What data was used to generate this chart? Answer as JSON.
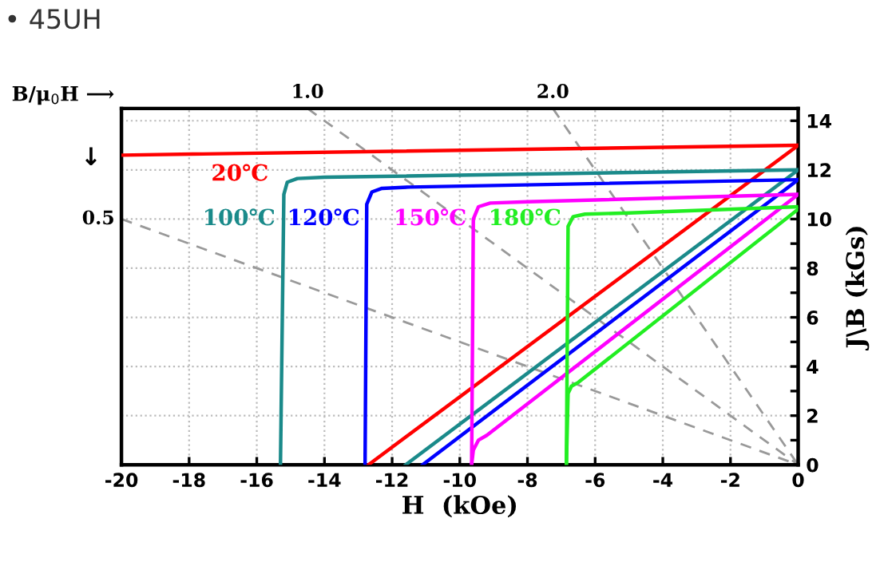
{
  "chart_data": {
    "type": "line",
    "title": "• 45UH",
    "xlabel": "H  (kOe)",
    "ylabel": "J\\B (kGs)",
    "xlim": [
      -20,
      0
    ],
    "xticks": [
      -20,
      -18,
      -16,
      -14,
      -12,
      -10,
      -8,
      -6,
      -4,
      -2,
      0
    ],
    "ylim": [
      0,
      14.5
    ],
    "yticks": [
      0,
      {
        "value": 1,
        "label": null
      },
      2,
      {
        "value": 3,
        "label": null
      },
      4,
      {
        "value": 5,
        "label": null
      },
      6,
      {
        "value": 7,
        "label": null
      },
      8,
      {
        "value": 9,
        "label": null
      },
      10,
      {
        "value": 11,
        "label": null
      },
      12,
      {
        "value": 13,
        "label": null
      },
      14
    ],
    "grid": true,
    "line_style": "solid",
    "series": [
      {
        "name": "20℃",
        "color": "#ff0000",
        "x": [
          -20,
          0
        ],
        "values": [
          12.6,
          13.0
        ]
      },
      {
        "color": "#ff0000",
        "x": [
          -12.7,
          0
        ],
        "values": [
          0,
          13.0
        ]
      },
      {
        "name": "100℃",
        "color": "#1a8a8a",
        "x": [
          -15.3,
          -15.2,
          -15.1,
          -14.8,
          -14.0,
          0
        ],
        "values": [
          0,
          11.0,
          11.5,
          11.65,
          11.7,
          12.0
        ]
      },
      {
        "color": "#1a8a8a",
        "x": [
          -11.6,
          0
        ],
        "values": [
          0,
          12.0
        ]
      },
      {
        "name": "120℃",
        "color": "#0000ff",
        "x": [
          -12.8,
          -12.75,
          -12.6,
          -12.3,
          -11.5,
          0
        ],
        "values": [
          0,
          10.6,
          11.1,
          11.25,
          11.3,
          11.6
        ]
      },
      {
        "color": "#0000ff",
        "x": [
          -11.1,
          0
        ],
        "values": [
          0,
          11.6
        ]
      },
      {
        "name": "150℃",
        "color": "#ff00ff",
        "x": [
          -9.65,
          -9.6,
          -9.45,
          -9.1,
          -8.0,
          0
        ],
        "values": [
          0,
          10.0,
          10.5,
          10.65,
          10.7,
          11.0
        ]
      },
      {
        "color": "#ff00ff",
        "x": [
          -9.65,
          -9.6,
          -9.45,
          -9.2,
          0
        ],
        "values": [
          0,
          0.6,
          1.0,
          1.2,
          11.0
        ]
      },
      {
        "name": "180℃",
        "color": "#22ee22",
        "x": [
          -6.85,
          -6.8,
          -6.65,
          -6.3,
          -5.0,
          0
        ],
        "values": [
          0,
          9.7,
          10.1,
          10.2,
          10.25,
          10.5
        ]
      },
      {
        "color": "#22ee22",
        "x": [
          -6.85,
          -6.8,
          -6.7,
          -6.5,
          0
        ],
        "values": [
          0,
          2.9,
          3.2,
          3.35,
          10.4
        ]
      },
      {
        "color": "#999999",
        "line_style": "dashed",
        "x": [
          -20,
          0
        ],
        "values": [
          10,
          0
        ]
      },
      {
        "color": "#999999",
        "line_style": "dashed",
        "x": [
          -14.5,
          0
        ],
        "values": [
          14.5,
          0
        ]
      },
      {
        "color": "#999999",
        "line_style": "dashed",
        "x": [
          -7.25,
          0
        ],
        "values": [
          14.5,
          0
        ]
      }
    ],
    "annotations": [
      "B/μ$_{0}$H ⟶",
      "↓",
      {
        "text": "0.5",
        "x": -20,
        "y": 10
      },
      {
        "text": "1.0",
        "x": -14.5,
        "y": 14.5
      },
      {
        "text": "2.0",
        "x": -7.25,
        "y": 14.5
      }
    ]
  }
}
